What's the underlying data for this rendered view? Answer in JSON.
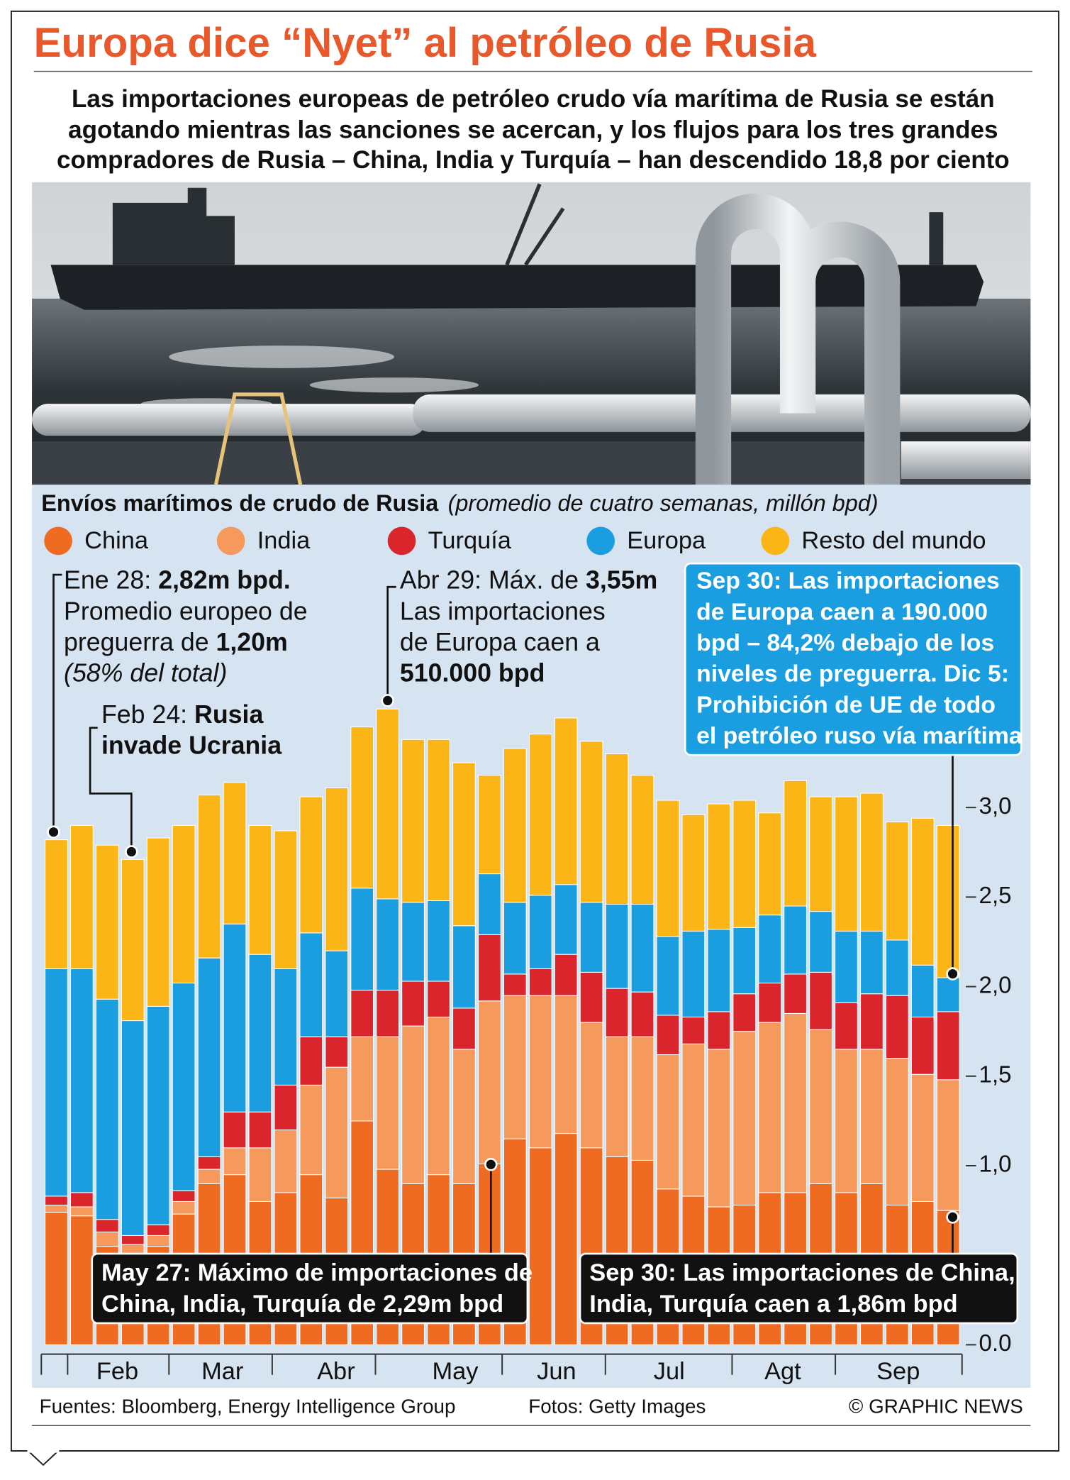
{
  "chart_data": {
    "type": "stacked-bar",
    "title": "Europa dice “Nyet” al petróleo de Rusia",
    "subtitle": [
      "Las importaciones europeas de petróleo crudo vía marítima de Rusia se están",
      "agotando mientras las sanciones se acercan, y los flujos para los tres grandes",
      "compradores de Rusia – China, India y Turquía – han descendido 18,8 por ciento"
    ],
    "chart_title": "Envíos marítimos de crudo de Rusia",
    "chart_subtitle": "(promedio de cuatro semanas, millón bpd)",
    "x_labels": [
      "Feb",
      "Mar",
      "Abr",
      "May",
      "Jun",
      "Jul",
      "Agt",
      "Sep"
    ],
    "series": [
      {
        "name": "China",
        "color": "#ef6b21",
        "values": [
          0.74,
          0.72,
          0.55,
          0.5,
          0.55,
          0.73,
          0.9,
          0.95,
          0.8,
          0.85,
          0.95,
          0.82,
          1.25,
          0.98,
          0.9,
          0.95,
          0.9,
          1.01,
          1.15,
          1.1,
          1.18,
          1.1,
          1.05,
          1.03,
          0.87,
          0.83,
          0.77,
          0.78,
          0.85,
          0.85,
          0.9,
          0.85,
          0.9,
          0.78,
          0.8,
          0.75
        ]
      },
      {
        "name": "India",
        "color": "#f59a5c",
        "values": [
          0.04,
          0.05,
          0.08,
          0.06,
          0.06,
          0.07,
          0.08,
          0.15,
          0.3,
          0.35,
          0.5,
          0.73,
          0.47,
          0.74,
          0.88,
          0.88,
          0.75,
          0.91,
          0.8,
          0.85,
          0.77,
          0.7,
          0.67,
          0.69,
          0.75,
          0.85,
          0.88,
          0.97,
          0.95,
          1.0,
          0.86,
          0.8,
          0.75,
          0.82,
          0.71,
          0.73
        ]
      },
      {
        "name": "Turquía",
        "color": "#d9252b",
        "values": [
          0.05,
          0.08,
          0.07,
          0.05,
          0.06,
          0.06,
          0.07,
          0.2,
          0.2,
          0.25,
          0.27,
          0.17,
          0.26,
          0.26,
          0.25,
          0.2,
          0.23,
          0.37,
          0.12,
          0.15,
          0.23,
          0.28,
          0.27,
          0.25,
          0.22,
          0.15,
          0.21,
          0.21,
          0.22,
          0.22,
          0.32,
          0.26,
          0.31,
          0.35,
          0.32,
          0.38
        ]
      },
      {
        "name": "Europa",
        "color": "#1b9ee0",
        "values": [
          1.27,
          1.25,
          1.23,
          1.2,
          1.22,
          1.16,
          1.11,
          1.05,
          0.88,
          0.65,
          0.58,
          0.48,
          0.57,
          0.51,
          0.44,
          0.45,
          0.46,
          0.34,
          0.4,
          0.41,
          0.39,
          0.39,
          0.47,
          0.49,
          0.44,
          0.48,
          0.46,
          0.37,
          0.38,
          0.38,
          0.34,
          0.4,
          0.35,
          0.31,
          0.29,
          0.19
        ]
      },
      {
        "name": "Resto del mundo",
        "color": "#fbb516",
        "values": [
          0.72,
          0.8,
          0.86,
          0.9,
          0.94,
          0.88,
          0.91,
          0.79,
          0.72,
          0.77,
          0.76,
          0.91,
          0.9,
          1.06,
          0.91,
          0.9,
          0.91,
          0.55,
          0.86,
          0.9,
          0.93,
          0.9,
          0.84,
          0.72,
          0.76,
          0.65,
          0.7,
          0.71,
          0.57,
          0.7,
          0.64,
          0.75,
          0.77,
          0.66,
          0.82,
          0.85
        ]
      }
    ],
    "ylim": [
      0,
      4
    ],
    "yticks": [
      {
        "value": 0,
        "label": "0.0"
      },
      {
        "value": 1,
        "label": "1,0"
      },
      {
        "value": 1.5,
        "label": "1,5"
      },
      {
        "value": 2,
        "label": "2,0"
      },
      {
        "value": 2.5,
        "label": "2,5"
      },
      {
        "value": 3,
        "label": "3,0"
      }
    ],
    "annotations": [
      {
        "lines": [
          [
            {
              "text": "Ene 28: "
            },
            {
              "text": "2,82m bpd.",
              "bold": true
            }
          ],
          [
            {
              "text": "Promedio europeo de"
            }
          ],
          [
            {
              "text": "preguerra de "
            },
            {
              "text": "1,20m",
              "bold": true
            }
          ],
          [
            {
              "text": "(58% del total)",
              "italic": true
            }
          ]
        ]
      },
      {
        "lines": [
          [
            {
              "text": "Feb 24: "
            },
            {
              "text": "Rusia",
              "bold": true
            }
          ],
          [
            {
              "text": "invade Ucrania",
              "bold": true
            }
          ]
        ]
      },
      {
        "lines": [
          [
            {
              "text": "Abr 29: Máx. de "
            },
            {
              "text": "3,55m",
              "bold": true
            }
          ],
          [
            {
              "text": "Las importaciones"
            }
          ],
          [
            {
              "text": "de Europa caen a"
            }
          ],
          [
            {
              "text": "510.000 bpd",
              "bold": true
            }
          ]
        ]
      },
      {
        "lines": [
          [
            {
              "text": "Sep 30: Las importaciones",
              "bold": true
            }
          ],
          [
            {
              "text": "de Europa caen a 190.000",
              "bold": true
            }
          ],
          [
            {
              "text": "bpd – 84,2% debajo de los",
              "bold": true
            }
          ],
          [
            {
              "text": "niveles de preguerra. Dic 5:",
              "bold": true
            }
          ],
          [
            {
              "text": "Prohibición de UE de todo",
              "bold": true
            }
          ],
          [
            {
              "text": "el petróleo ruso vía marítima",
              "bold": true
            }
          ]
        ]
      },
      {
        "lines": [
          [
            {
              "text": "May 27: Máximo de importaciones de",
              "bold": true
            }
          ],
          [
            {
              "text": "China, India, Turquía de 2,29m bpd",
              "bold": true
            }
          ]
        ]
      },
      {
        "lines": [
          [
            {
              "text": "Sep 30: Las importaciones de China,",
              "bold": true
            }
          ],
          [
            {
              "text": "India, Turquía caen a 1,86m bpd",
              "bold": true
            }
          ]
        ]
      }
    ],
    "source": "Fuentes: Bloomberg, Energy Intelligence Group",
    "photo_credit": "Fotos: Getty Images",
    "credit": "© GRAPHIC NEWS"
  }
}
